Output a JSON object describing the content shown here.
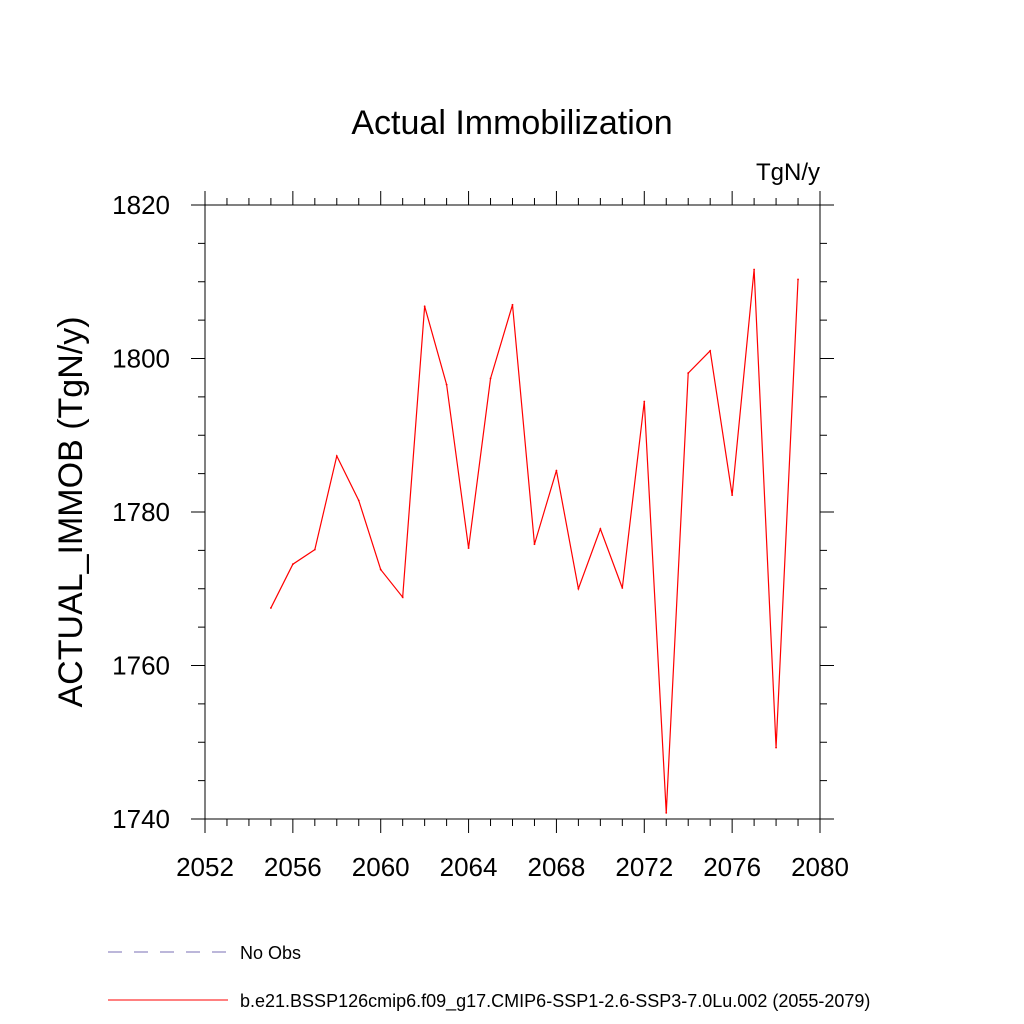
{
  "chart_data": {
    "type": "line",
    "title": "Actual Immobilization",
    "units_label": "TgN/y",
    "xlabel": "",
    "ylabel": "ACTUAL_IMMOB  (TgN/y)",
    "xlim": [
      2052,
      2080
    ],
    "ylim": [
      1740,
      1820
    ],
    "x_ticks": [
      2052,
      2056,
      2060,
      2064,
      2068,
      2072,
      2076,
      2080
    ],
    "x_tick_labels": [
      "2052",
      "2056",
      "2060",
      "2064",
      "2068",
      "2072",
      "2076",
      "2080"
    ],
    "y_ticks": [
      1740,
      1760,
      1780,
      1800,
      1820
    ],
    "y_tick_labels": [
      "1740",
      "1760",
      "1780",
      "1800",
      "1820"
    ],
    "grid": false,
    "legend_position": "bottom-left",
    "series": [
      {
        "name": "No Obs",
        "style": "dashed",
        "color": "#7a6fb5",
        "x": [],
        "values": []
      },
      {
        "name": "b.e21.BSSP126cmip6.f09_g17.CMIP6-SSP1-2.6-SSP3-7.0Lu.002 (2055-2079)",
        "style": "solid",
        "color": "#ff0000",
        "x": [
          2055,
          2056,
          2057,
          2058,
          2059,
          2060,
          2061,
          2062,
          2063,
          2064,
          2065,
          2066,
          2067,
          2068,
          2069,
          2070,
          2071,
          2072,
          2073,
          2074,
          2075,
          2076,
          2077,
          2078,
          2079
        ],
        "values": [
          1767.5,
          1773.2,
          1775.1,
          1787.3,
          1781.5,
          1772.5,
          1768.9,
          1806.8,
          1796.6,
          1775.3,
          1797.4,
          1807.0,
          1775.8,
          1785.4,
          1770.0,
          1777.8,
          1770.1,
          1794.4,
          1740.8,
          1798.1,
          1801.0,
          1782.2,
          1811.6,
          1749.3,
          1810.3
        ]
      }
    ]
  }
}
